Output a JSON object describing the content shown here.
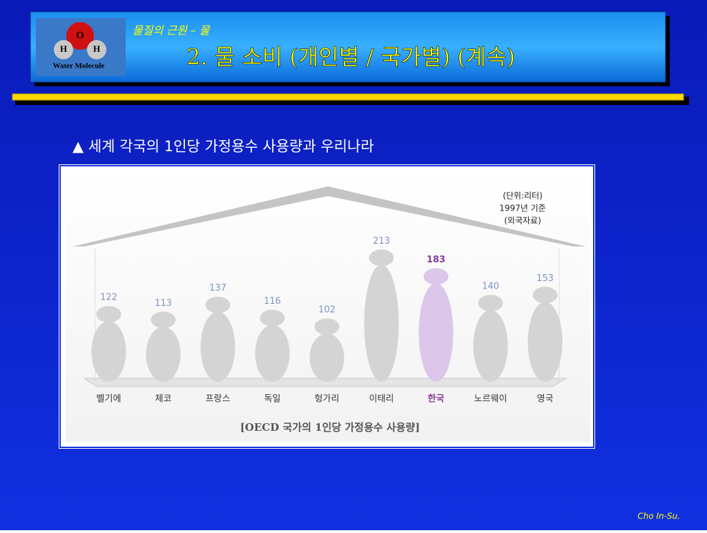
{
  "header": {
    "logo": {
      "oxygen": "O",
      "hydrogen_left": "H",
      "hydrogen_right": "H",
      "caption": "Water Molecule"
    },
    "section": "물질의 근원 – 물",
    "title": "2. 물 소비 (개인별 / 국가별) (계속)"
  },
  "subtitle": "▲ 세계 각국의 1인당 가정용수 사용량과 우리나라",
  "chart_data": {
    "type": "figure",
    "notes": [
      "(단위:리터)",
      "1997년 기준",
      "(외국자료)"
    ],
    "caption": "[OECD 국가의 1인당 가정용수 사용량]",
    "categories": [
      "벨기에",
      "체코",
      "프랑스",
      "독일",
      "헝가리",
      "이태리",
      "한국",
      "노르웨이",
      "영국"
    ],
    "values": [
      122,
      113,
      137,
      116,
      102,
      213,
      183,
      140,
      153
    ],
    "colors": [
      "#d4d4d4",
      "#d4d4d4",
      "#d4d4d4",
      "#d4d4d4",
      "#d4d4d4",
      "#d4d4d4",
      "#dcc6ea",
      "#d4d4d4",
      "#d4d4d4"
    ],
    "label_colors": [
      "#7f93c4",
      "#7f93c4",
      "#7f93c4",
      "#7f93c4",
      "#7f93c4",
      "#7f93c4",
      "#8a3a9a",
      "#7f93c4",
      "#7f93c4"
    ]
  },
  "footer": "Cho In-Su."
}
